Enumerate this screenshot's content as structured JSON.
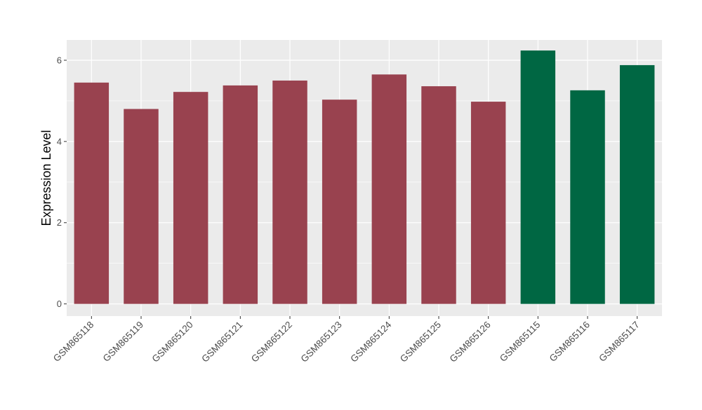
{
  "chart_data": {
    "type": "bar",
    "ylabel": "Expression Level",
    "xlabel": "",
    "ylim": [
      -0.3,
      6.5
    ],
    "yticks": [
      0,
      2,
      4,
      6
    ],
    "grid": true,
    "categories": [
      "GSM865118",
      "GSM865119",
      "GSM865120",
      "GSM865121",
      "GSM865122",
      "GSM865123",
      "GSM865124",
      "GSM865125",
      "GSM865126",
      "GSM865115",
      "GSM865116",
      "GSM865117"
    ],
    "values": [
      5.45,
      4.8,
      5.22,
      5.38,
      5.5,
      5.03,
      5.65,
      5.36,
      4.98,
      6.24,
      5.26,
      5.88
    ],
    "bar_colors": [
      "#99424F",
      "#99424F",
      "#99424F",
      "#99424F",
      "#99424F",
      "#99424F",
      "#99424F",
      "#99424F",
      "#99424F",
      "#006743",
      "#006743",
      "#006743"
    ],
    "panel_background": "#EBEBEB",
    "gridline_color": "#FFFFFF"
  }
}
